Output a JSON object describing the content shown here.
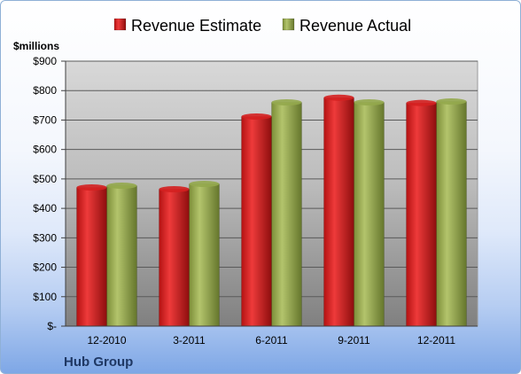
{
  "chart_data": {
    "type": "bar",
    "unit_label": "$millions",
    "company": "Hub Group",
    "categories": [
      "12-2010",
      "3-2011",
      "6-2011",
      "9-2011",
      "12-2011"
    ],
    "series": [
      {
        "name": "Revenue Estimate",
        "color": "#d42020",
        "values": [
          471,
          465,
          712,
          776,
          758
        ]
      },
      {
        "name": "Revenue Actual",
        "color": "#94a84c",
        "values": [
          477,
          483,
          760,
          760,
          763
        ]
      }
    ],
    "ylim": [
      0,
      900
    ],
    "yticks": [
      0,
      100,
      200,
      300,
      400,
      500,
      600,
      700,
      800,
      900
    ],
    "ytick_labels": [
      "$-",
      "$100",
      "$200",
      "$300",
      "$400",
      "$500",
      "$600",
      "$700",
      "$800",
      "$900"
    ],
    "grid": true,
    "legend_position": "top"
  }
}
